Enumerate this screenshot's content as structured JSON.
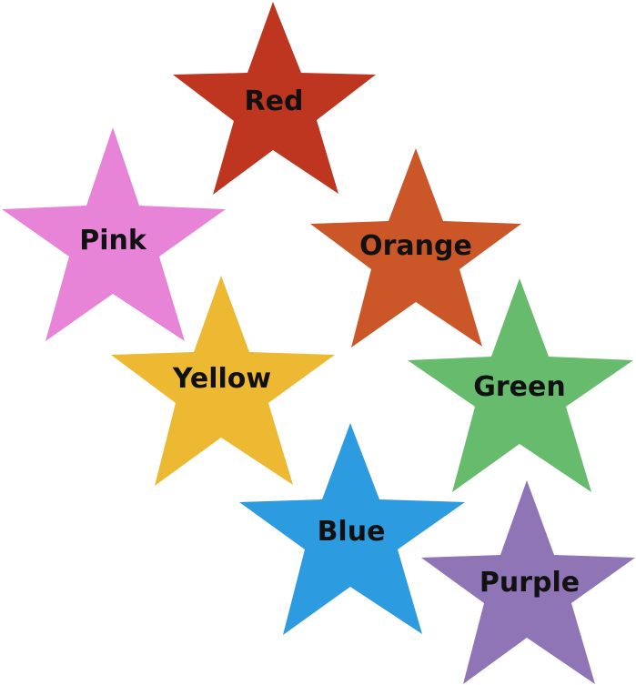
{
  "stars": [
    {
      "label": "Red",
      "color": "#be3520"
    },
    {
      "label": "Pink",
      "color": "#e784d8"
    },
    {
      "label": "Orange",
      "color": "#cb5627"
    },
    {
      "label": "Yellow",
      "color": "#edb932"
    },
    {
      "label": "Green",
      "color": "#66bb6d"
    },
    {
      "label": "Blue",
      "color": "#2d9be0"
    },
    {
      "label": "Purple",
      "color": "#8f74b6"
    }
  ]
}
